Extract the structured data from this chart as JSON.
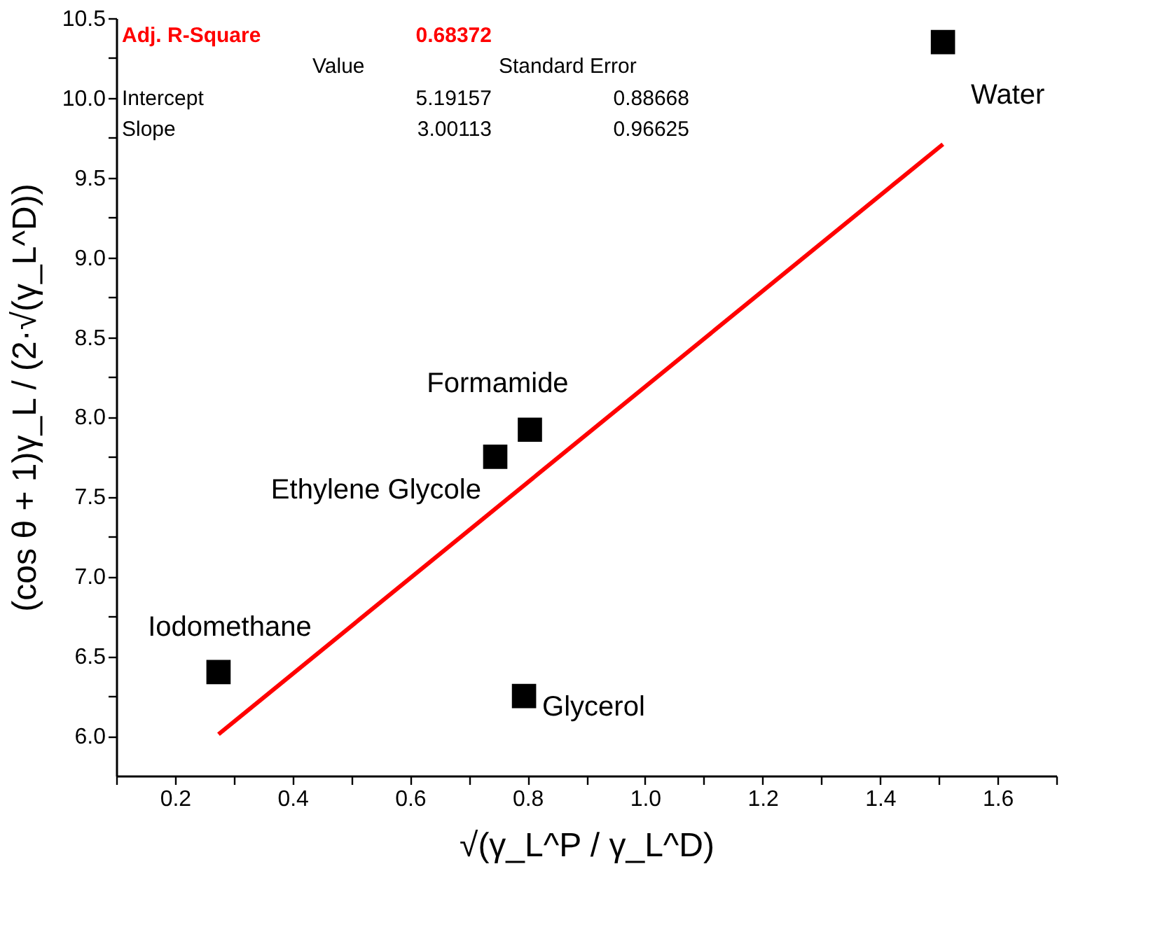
{
  "chart_data": {
    "type": "scatter",
    "xlabel": "√(γ_L^P / γ_L^D)",
    "ylabel": "(cos θ + 1)γ_L / (2·√(γ_L^D))",
    "x": [
      0.274,
      0.745,
      0.804,
      0.794,
      1.507
    ],
    "series": [
      {
        "type": "scatter",
        "color": "#000000",
        "marker": "square",
        "values": [
          6.4,
          7.75,
          7.92,
          6.25,
          10.35
        ]
      },
      {
        "type": "line",
        "color": "#ff0000",
        "line_style": "solid",
        "marker": "none",
        "x": [
          0.274,
          1.507
        ],
        "values": [
          6.01,
          9.71
        ]
      }
    ],
    "xlim": [
      0.1,
      1.7
    ],
    "ylim": [
      5.75,
      10.5
    ],
    "xticks": [
      {
        "value": 0.1,
        "label": null
      },
      0.2,
      {
        "value": 0.3,
        "label": null
      },
      0.4,
      {
        "value": 0.5,
        "label": null
      },
      0.6,
      {
        "value": 0.7,
        "label": null
      },
      0.8,
      {
        "value": 0.9,
        "label": null
      },
      {
        "value": 1,
        "label": "1.0"
      },
      {
        "value": 1.1,
        "label": null
      },
      1.2,
      {
        "value": 1.3,
        "label": null
      },
      1.4,
      {
        "value": 1.5,
        "label": null
      },
      1.6,
      {
        "value": 1.7,
        "label": null
      }
    ],
    "yticks": [
      {
        "value": 6,
        "label": "6.0"
      },
      {
        "value": 6.25,
        "label": null
      },
      6.5,
      {
        "value": 6.75,
        "label": null
      },
      {
        "value": 7,
        "label": "7.0"
      },
      {
        "value": 7.25,
        "label": null
      },
      7.5,
      {
        "value": 7.75,
        "label": null
      },
      {
        "value": 8,
        "label": "8.0"
      },
      {
        "value": 8.25,
        "label": null
      },
      8.5,
      {
        "value": 8.75,
        "label": null
      },
      {
        "value": 9,
        "label": "9.0"
      },
      {
        "value": 9.25,
        "label": null
      },
      9.5,
      {
        "value": 9.75,
        "label": null
      },
      {
        "value": 10,
        "label": "10.0"
      },
      {
        "value": 10.25,
        "label": null
      },
      10.5
    ],
    "grid": false,
    "annotations": [
      {
        "text": "Iodomethane",
        "x": 0.274,
        "y": 6.4
      },
      {
        "text": "Ethylene Glycole",
        "x": 0.745,
        "y": 7.75
      },
      {
        "text": "Formamide",
        "x": 0.804,
        "y": 7.92
      },
      {
        "text": "Glycerol",
        "x": 0.794,
        "y": 6.25
      },
      {
        "text": "Water",
        "x": 1.507,
        "y": 10.35
      },
      "Adj. R-Square",
      "0.68372",
      "Value",
      "Standard Error",
      "Intercept",
      "5.19157",
      "0.88668",
      "Slope",
      "3.00113",
      "0.96625"
    ]
  }
}
